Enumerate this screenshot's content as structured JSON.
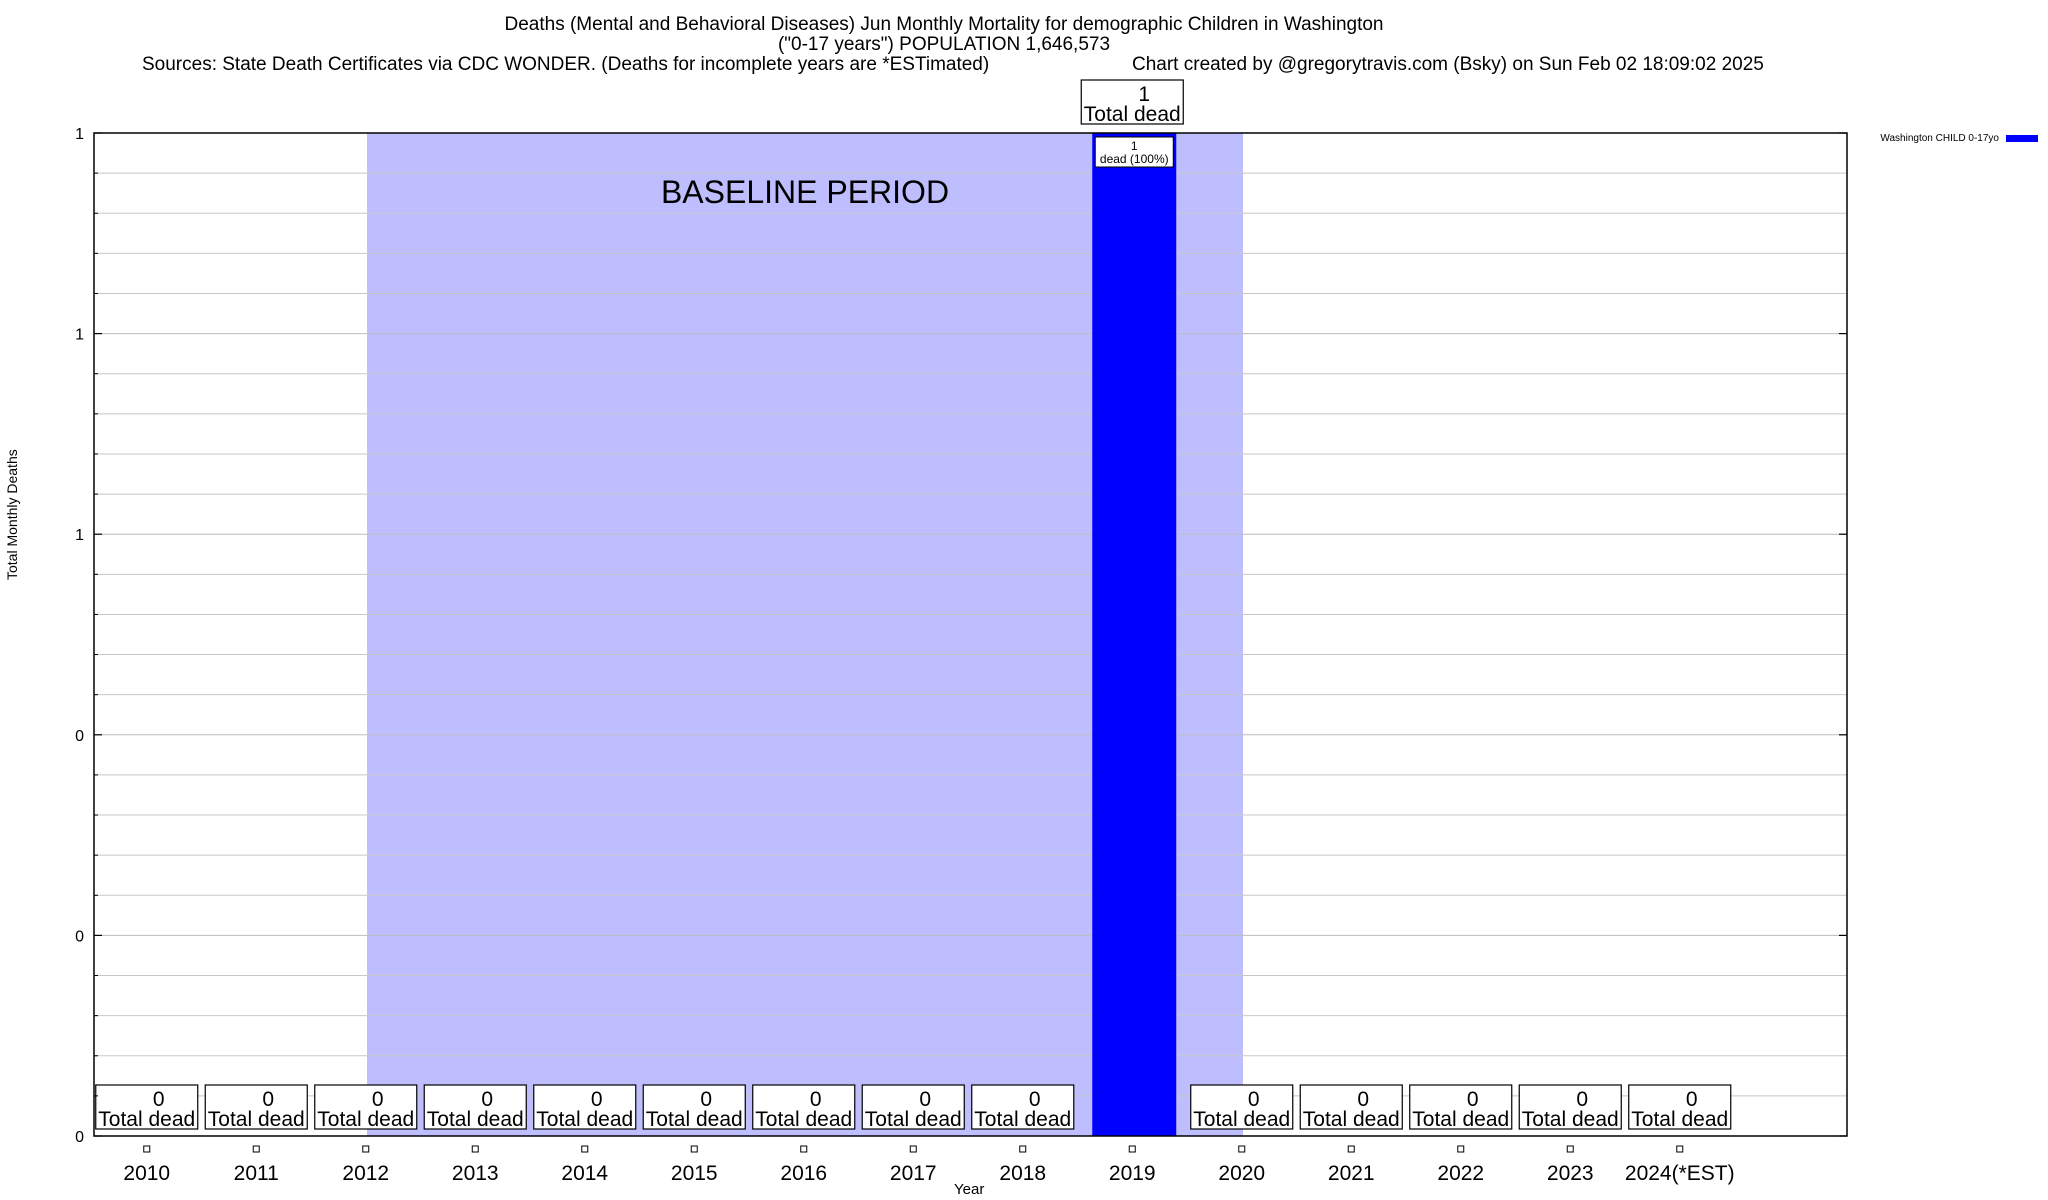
{
  "header": {
    "title_line1": "Deaths (Mental and Behavioral Diseases) Jun Monthly Mortality for demographic Children in Washington",
    "title_line2": "(\"0-17 years\") POPULATION 1,646,573",
    "sources": "Sources: State Death Certificates via CDC WONDER. (Deaths for incomplete years are *ESTimated)",
    "credit": "Chart created by @gregorytravis.com (Bsky) on Sun Feb 02 18:09:02 2025"
  },
  "chart_data": {
    "type": "bar",
    "categories": [
      "2010",
      "2011",
      "2012",
      "2013",
      "2014",
      "2015",
      "2016",
      "2017",
      "2018",
      "2019",
      "2020",
      "2021",
      "2022",
      "2023",
      "2024(*EST)"
    ],
    "series": [
      {
        "name": "Washington CHILD 0-17yo",
        "values": [
          0,
          0,
          0,
          0,
          0,
          0,
          0,
          0,
          0,
          1,
          0,
          0,
          0,
          0,
          0
        ],
        "color": "#0000ff"
      }
    ],
    "total_labels": [
      "0",
      "0",
      "0",
      "0",
      "0",
      "0",
      "0",
      "0",
      "0",
      "1",
      "0",
      "0",
      "0",
      "0",
      "0"
    ],
    "total_suffix": "Total dead",
    "bar_label": {
      "category": "2019",
      "line1": "1",
      "line2": "dead (100%)"
    },
    "xlabel": "Year",
    "ylabel": "Total Monthly Deaths",
    "ylim": [
      0,
      1
    ],
    "ytick_labels": [
      "0",
      "0",
      "0",
      "1",
      "1",
      "1"
    ],
    "baseline": {
      "label": "BASELINE PERIOD",
      "from": "2012",
      "to": "2019",
      "color": "#bebeff"
    },
    "legend": {
      "position": "top-right",
      "entries": [
        "Washington CHILD 0-17yo"
      ]
    },
    "grid": true
  }
}
